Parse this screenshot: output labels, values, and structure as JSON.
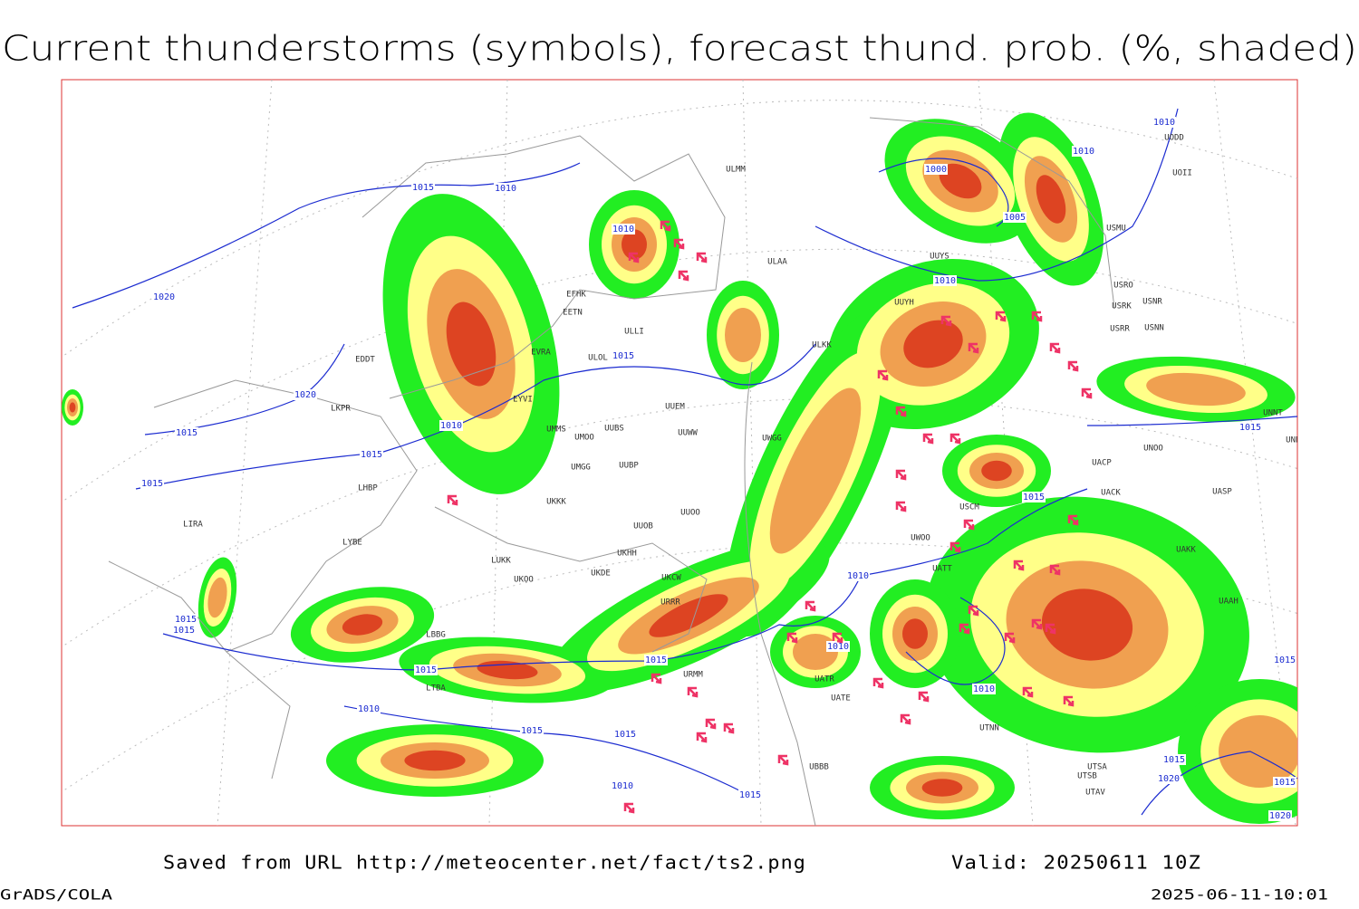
{
  "title": "Current thunderstorms (symbols), forecast thund. prob. (%, shaded)",
  "footer": {
    "saved": "Saved from URL http://meteocenter.net/fact/ts2.png",
    "valid": "Valid: 20250611 10Z",
    "software": "GrADS/COLA",
    "timestamp": "2025-06-11-10:01"
  },
  "isobar_labels": [
    "1015",
    "1010",
    "1020",
    "1020",
    "1015",
    "1010",
    "1015",
    "1015",
    "1010",
    "1015",
    "1000",
    "1010",
    "1010",
    "1005",
    "1010",
    "1015",
    "1015",
    "1010",
    "1010",
    "1010",
    "1015",
    "1015",
    "1015",
    "1015",
    "1010",
    "1015",
    "1015",
    "1010",
    "1015",
    "1015",
    "1020",
    "1015",
    "1020",
    "1015"
  ],
  "stations": [
    "ULMM",
    "ULAA",
    "UUYS",
    "UUYH",
    "USMU",
    "USRO",
    "USRK",
    "USNR",
    "USRR",
    "USNN",
    "UODD",
    "UOII",
    "EFHK",
    "EETN",
    "EVRA",
    "ULLI",
    "ULKK",
    "ULOL",
    "UUEM",
    "EYVI",
    "LKPR",
    "EDDT",
    "UMMS",
    "UUBS",
    "UUWW",
    "UMOO",
    "UWGG",
    "UMGG",
    "UUBP",
    "UKKK",
    "UUOO",
    "UUOB",
    "UKHH",
    "UKDE",
    "UKOO",
    "LUKK",
    "UKCW",
    "LYBE",
    "LIRA",
    "LHBP",
    "UNOO",
    "UACP",
    "UACK",
    "UASP",
    "UNBB",
    "UNNT",
    "USCM",
    "UWOO",
    "UAKK",
    "UAAH",
    "UATT",
    "UATE",
    "UATR",
    "UTNN",
    "UTSA",
    "UTSB",
    "UTAV",
    "UBBB",
    "LBBG",
    "LTBA",
    "URMM",
    "URRR"
  ]
}
